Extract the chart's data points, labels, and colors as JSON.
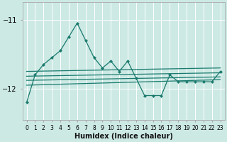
{
  "xlabel": "Humidex (Indice chaleur)",
  "background_color": "#cce9e4",
  "grid_color": "#d9d9d9",
  "line_color": "#1a7a6e",
  "yticks": [
    -12,
    -11
  ],
  "xticks": [
    0,
    1,
    2,
    3,
    4,
    5,
    6,
    7,
    8,
    9,
    10,
    11,
    12,
    13,
    14,
    15,
    16,
    17,
    18,
    19,
    20,
    21,
    22,
    23
  ],
  "ylim": [
    -12.45,
    -10.75
  ],
  "xlim": [
    -0.5,
    23.5
  ],
  "line_width": 0.9,
  "marker_size": 2.5,
  "series_no_marker": [
    {
      "x": [
        0,
        1,
        2,
        3,
        4,
        5,
        6,
        7,
        8,
        9,
        10,
        11,
        12,
        13,
        14,
        15,
        16,
        17,
        18,
        19,
        20,
        21,
        22,
        23
      ],
      "y": [
        -11.75,
        -11.55,
        -11.55,
        -11.55,
        -11.55,
        -11.55,
        -11.55,
        -11.55,
        -11.55,
        -11.55,
        -11.55,
        -11.55,
        -11.55,
        -11.6,
        -11.65,
        -11.7,
        -11.7,
        -11.7,
        -11.7,
        -11.7,
        -11.7,
        -11.7,
        -11.7,
        -11.7
      ]
    },
    {
      "x": [
        0,
        1,
        2,
        3,
        4,
        5,
        6,
        7,
        8,
        9,
        10,
        11,
        12,
        13,
        14,
        15,
        16,
        17,
        18,
        19,
        20,
        21,
        22,
        23
      ],
      "y": [
        -11.8,
        -11.7,
        -11.7,
        -11.7,
        -11.7,
        -11.7,
        -11.7,
        -11.7,
        -11.7,
        -11.75,
        -11.75,
        -11.75,
        -11.8,
        -11.8,
        -11.85,
        -11.85,
        -11.85,
        -11.8,
        -11.8,
        -11.8,
        -11.8,
        -11.8,
        -11.8,
        -11.8
      ]
    },
    {
      "x": [
        0,
        23
      ],
      "y": [
        -11.85,
        -11.75
      ]
    },
    {
      "x": [
        0,
        23
      ],
      "y": [
        -11.95,
        -11.85
      ]
    }
  ],
  "series_with_marker": [
    {
      "x": [
        1,
        2,
        3,
        4,
        5,
        6,
        7,
        8,
        9,
        10,
        11,
        12,
        13,
        14,
        15,
        16,
        17,
        18,
        19,
        20,
        21,
        22,
        23
      ],
      "y": [
        -11.6,
        -11.4,
        -11.4,
        -11.25,
        -11.05,
        -10.95,
        -11.2,
        -11.45,
        -11.6,
        -11.6,
        -11.7,
        -11.6,
        -11.8,
        -12.05,
        -12.1,
        -11.85,
        -11.8,
        -11.85,
        -11.85,
        -11.9,
        -11.75,
        -11.75,
        -11.75
      ]
    }
  ],
  "series_with_marker2": [
    {
      "x": [
        0,
        1,
        2,
        3,
        4,
        5,
        6,
        7,
        8,
        9,
        10,
        11,
        12,
        13,
        14,
        15,
        16,
        17,
        18,
        19,
        20,
        21,
        22,
        23
      ],
      "y": [
        -12.2,
        -11.8,
        -11.65,
        -11.55,
        -11.45,
        -11.25,
        -11.05,
        -11.3,
        -11.55,
        -11.7,
        -11.6,
        -11.75,
        -11.6,
        -11.85,
        -12.1,
        -12.1,
        -12.1,
        -11.8,
        -11.9,
        -11.9,
        -11.9,
        -11.9,
        -11.9,
        -11.75
      ]
    }
  ]
}
